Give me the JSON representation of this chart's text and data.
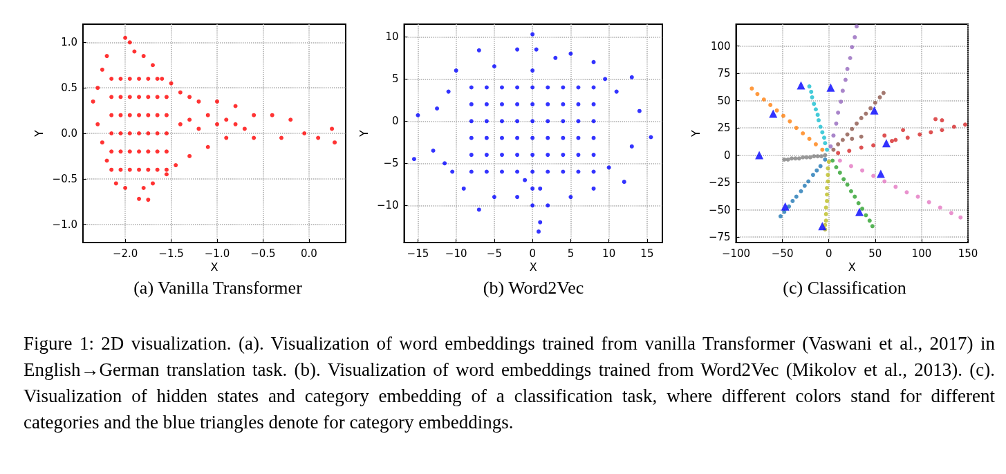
{
  "chart_data": [
    {
      "type": "scatter",
      "title": "(a) Vanilla Transformer",
      "xlabel": "X",
      "ylabel": "Y",
      "xlim": [
        -2.46,
        0.4
      ],
      "ylim": [
        -1.2,
        1.2
      ],
      "xticks": [
        {
          "value": -2.0,
          "label": "−2.0"
        },
        {
          "value": -1.5,
          "label": "−1.5"
        },
        {
          "value": -1.0,
          "label": "−1.0"
        },
        {
          "value": -0.5,
          "label": "−0.5"
        },
        {
          "value": 0,
          "label": "0.0"
        }
      ],
      "yticks": [
        {
          "value": -1.0,
          "label": "−1.0"
        },
        {
          "value": -0.5,
          "label": "−0.5"
        },
        {
          "value": 0,
          "label": "0.0"
        },
        {
          "value": 0.5,
          "label": "0.5"
        },
        {
          "value": 1.0,
          "label": "1.0"
        }
      ],
      "grid": true,
      "marker": "circle",
      "series": [
        {
          "color": "#ff0000",
          "x": [
            -2.3,
            -2.35,
            -2.25,
            -2.2,
            -2.0,
            -1.95,
            -1.9,
            -1.8,
            -1.7,
            -1.6,
            -1.5,
            -1.4,
            -1.3,
            -1.2,
            -1.0,
            -0.8,
            -0.6,
            -0.4,
            -0.2,
            -0.05,
            0.1,
            0.25,
            0.28,
            -0.3,
            -0.6,
            -0.9,
            -1.1,
            -1.3,
            -1.45,
            -1.55,
            -1.7,
            -1.8,
            -1.75,
            -1.85,
            -2.0,
            -2.1,
            -2.2,
            -2.25,
            -2.3,
            -2.15,
            -2.15,
            -2.15,
            -2.15,
            -2.15,
            -2.15,
            -2.05,
            -2.05,
            -2.05,
            -2.05,
            -2.05,
            -2.05,
            -1.95,
            -1.95,
            -1.95,
            -1.95,
            -1.95,
            -1.95,
            -1.85,
            -1.85,
            -1.85,
            -1.85,
            -1.85,
            -1.85,
            -1.75,
            -1.75,
            -1.75,
            -1.75,
            -1.75,
            -1.75,
            -1.65,
            -1.65,
            -1.65,
            -1.65,
            -1.65,
            -1.65,
            -1.55,
            -1.55,
            -1.55,
            -1.55,
            -1.55,
            -1.4,
            -1.3,
            -1.2,
            -1.1,
            -1.0,
            -0.9,
            -0.8,
            -0.7
          ],
          "values": [
            0.5,
            0.35,
            0.7,
            0.85,
            1.05,
            1.0,
            0.9,
            0.85,
            0.75,
            0.6,
            0.55,
            0.45,
            0.4,
            0.35,
            0.35,
            0.3,
            0.2,
            0.2,
            0.15,
            0.0,
            -0.05,
            0.05,
            -0.1,
            -0.05,
            -0.05,
            -0.05,
            -0.15,
            -0.25,
            -0.35,
            -0.45,
            -0.55,
            -0.6,
            -0.73,
            -0.72,
            -0.6,
            -0.55,
            -0.3,
            -0.1,
            0.1,
            -0.4,
            -0.2,
            0.0,
            0.2,
            0.4,
            0.6,
            -0.4,
            -0.2,
            0.0,
            0.2,
            0.4,
            0.6,
            -0.4,
            -0.2,
            0.0,
            0.2,
            0.4,
            0.6,
            -0.4,
            -0.2,
            0.0,
            0.2,
            0.4,
            0.6,
            -0.4,
            -0.2,
            0.0,
            0.2,
            0.4,
            0.6,
            -0.4,
            -0.2,
            0.0,
            0.2,
            0.4,
            0.6,
            -0.4,
            -0.2,
            0.0,
            0.2,
            0.4,
            0.1,
            0.15,
            0.05,
            0.2,
            0.1,
            0.15,
            0.1,
            0.05
          ]
        }
      ]
    },
    {
      "type": "scatter",
      "title": "(b) Word2Vec",
      "xlabel": "X",
      "ylabel": "Y",
      "xlim": [
        -16.8,
        17
      ],
      "ylim": [
        -14.4,
        11.5
      ],
      "xticks": [
        {
          "value": -15,
          "label": "−15"
        },
        {
          "value": -10,
          "label": "−10"
        },
        {
          "value": -5,
          "label": "−5"
        },
        0,
        5,
        10,
        15
      ],
      "yticks": [
        {
          "value": -10,
          "label": "−10"
        },
        {
          "value": -5,
          "label": "−5"
        },
        0,
        5,
        10
      ],
      "grid": true,
      "marker": "circle",
      "series": [
        {
          "color": "#0000ff",
          "x": [
            -15.5,
            -15,
            -13,
            -12.5,
            -11,
            -10,
            -7,
            -5,
            -2,
            0,
            0.5,
            3,
            5,
            8,
            9.5,
            11,
            13,
            14,
            15.5,
            13,
            12,
            10,
            8,
            5,
            2,
            1,
            0.8,
            0,
            -2,
            -5,
            -7,
            -9,
            -10.5,
            -11.5,
            -8,
            -8,
            -8,
            -8,
            -8,
            -8,
            -6,
            -6,
            -6,
            -6,
            -6,
            -6,
            -4,
            -4,
            -4,
            -4,
            -4,
            -4,
            -2,
            -2,
            -2,
            -2,
            -2,
            -2,
            0,
            0,
            0,
            0,
            0,
            0,
            2,
            2,
            2,
            2,
            2,
            2,
            4,
            4,
            4,
            4,
            4,
            4,
            6,
            6,
            6,
            6,
            6,
            6,
            8,
            8,
            8,
            8,
            8,
            8,
            0,
            -1,
            1,
            0
          ],
          "values": [
            -4.5,
            0.7,
            -3.5,
            1.5,
            3.5,
            6,
            8.4,
            6.5,
            8.5,
            10.3,
            8.5,
            7.5,
            8,
            7,
            5,
            3.5,
            5.2,
            1.2,
            -1.9,
            -3,
            -7.2,
            -5.5,
            -8,
            -9,
            -10,
            -12,
            -13.1,
            -10,
            -9,
            -9,
            -10.5,
            -8,
            -6,
            -5,
            -6,
            -4,
            -2,
            0,
            2,
            4,
            -6,
            -4,
            -2,
            0,
            2,
            4,
            -6,
            -4,
            -2,
            0,
            2,
            4,
            -6,
            -4,
            -2,
            0,
            2,
            4,
            -6,
            -4,
            -2,
            0,
            2,
            4,
            -6,
            -4,
            -2,
            0,
            2,
            4,
            -6,
            -4,
            -2,
            0,
            2,
            4,
            -6,
            -4,
            -2,
            0,
            2,
            4,
            -6,
            -4,
            -2,
            0,
            2,
            4,
            6,
            -7,
            -8,
            -8
          ]
        }
      ]
    },
    {
      "type": "scatter",
      "title": "(c) Classification",
      "xlabel": "X",
      "ylabel": "Y",
      "xlim": [
        -100,
        150
      ],
      "ylim": [
        -80,
        120
      ],
      "xticks": [
        {
          "value": -100,
          "label": "−100"
        },
        {
          "value": -50,
          "label": "−50"
        },
        0,
        50,
        100,
        150
      ],
      "yticks": [
        {
          "value": -75,
          "label": "−75"
        },
        {
          "value": -50,
          "label": "−50"
        },
        {
          "value": -25,
          "label": "−25"
        },
        0,
        25,
        50,
        75,
        100
      ],
      "grid": true,
      "marker": "circle",
      "series": [
        {
          "color": "#1f77b4",
          "x": [
            -4,
            -9,
            -13,
            -17,
            -22,
            -26,
            -30,
            -35,
            -39,
            -43,
            -48,
            -52
          ],
          "values": [
            -4,
            -10,
            -14,
            -18,
            -24,
            -28,
            -33,
            -38,
            -42,
            -47,
            -52,
            -56
          ]
        },
        {
          "color": "#ff7f0e",
          "x": [
            -7,
            -14,
            -21,
            -28,
            -35,
            -42,
            -49,
            -56,
            -63,
            -70,
            -77,
            -83
          ],
          "values": [
            5,
            10,
            15,
            20,
            25,
            31,
            36,
            41,
            46,
            51,
            56,
            61
          ]
        },
        {
          "color": "#2ca02c",
          "x": [
            4,
            8,
            12,
            16,
            20,
            24,
            28,
            32,
            36,
            40,
            44,
            47
          ],
          "values": [
            -5,
            -11,
            -16,
            -22,
            -27,
            -33,
            -38,
            -44,
            -49,
            -55,
            -60,
            -65
          ]
        },
        {
          "color": "#d62728",
          "x": [
            10,
            22,
            35,
            48,
            68,
            72,
            85,
            98,
            110,
            122,
            135,
            147,
            60,
            80,
            115,
            122
          ],
          "values": [
            2,
            4,
            7,
            9,
            13,
            14,
            16,
            19,
            21,
            23,
            26,
            28,
            18,
            23,
            33,
            32
          ]
        },
        {
          "color": "#9467bd",
          "x": [
            2,
            5,
            8,
            10,
            13,
            15,
            18,
            20,
            23,
            25,
            28,
            30
          ],
          "values": [
            8,
            18,
            29,
            39,
            49,
            59,
            69,
            79,
            89,
            99,
            108,
            118
          ]
        },
        {
          "color": "#8c564b",
          "x": [
            5,
            10,
            15,
            20,
            25,
            30,
            35,
            40,
            45,
            50,
            55,
            59,
            25,
            35
          ],
          "values": [
            5,
            10,
            14,
            19,
            24,
            29,
            34,
            38,
            43,
            48,
            53,
            57,
            15,
            17
          ]
        },
        {
          "color": "#e377c2",
          "x": [
            12,
            24,
            36,
            48,
            60,
            72,
            84,
            96,
            108,
            120,
            132,
            142
          ],
          "values": [
            -5,
            -10,
            -14,
            -19,
            -24,
            -29,
            -34,
            -38,
            -43,
            -48,
            -53,
            -57
          ]
        },
        {
          "color": "#7f7f7f",
          "x": [
            -4,
            -8,
            -12,
            -16,
            -20,
            -24,
            -28,
            -32,
            -36,
            -40,
            -44,
            -48
          ],
          "values": [
            0,
            -1,
            -1,
            -1,
            -2,
            -2,
            -2,
            -3,
            -3,
            -3,
            -4,
            -4
          ]
        },
        {
          "color": "#bcbd22",
          "x": [
            0,
            -1,
            -1,
            -1,
            -2,
            -2,
            -2,
            -3,
            -3,
            -3,
            -4,
            -4
          ],
          "values": [
            -6,
            -12,
            -18,
            -24,
            -30,
            -36,
            -42,
            -48,
            -54,
            -60,
            -64,
            -68
          ]
        },
        {
          "color": "#17becf",
          "x": [
            -2,
            -4,
            -5,
            -7,
            -9,
            -11,
            -12,
            -14,
            -16,
            -18,
            -19,
            -21
          ],
          "values": [
            5,
            11,
            16,
            21,
            26,
            32,
            37,
            42,
            47,
            53,
            58,
            63
          ]
        },
        {
          "color": "#0000ff",
          "marker": "triangle",
          "x": [
            -30,
            2,
            -60,
            49,
            62,
            -75,
            56,
            -47,
            33,
            -7
          ],
          "values": [
            64,
            62,
            38,
            41,
            11,
            0,
            -17,
            -47,
            -52,
            -65
          ]
        }
      ]
    },
    {
      "type": "other",
      "annotations": [
        "Figure 1: 2D visualization. (a). Visualization of word embeddings trained from vanilla Transformer (Vaswani et al., 2017) in English→German translation task. (b). Visualization of word embeddings trained from Word2Vec (Mikolov et al., 2013). (c). Visualization of hidden states and category embedding of a classification task, where different colors stand for different categories and the blue triangles denote for category embeddings."
      ]
    }
  ]
}
